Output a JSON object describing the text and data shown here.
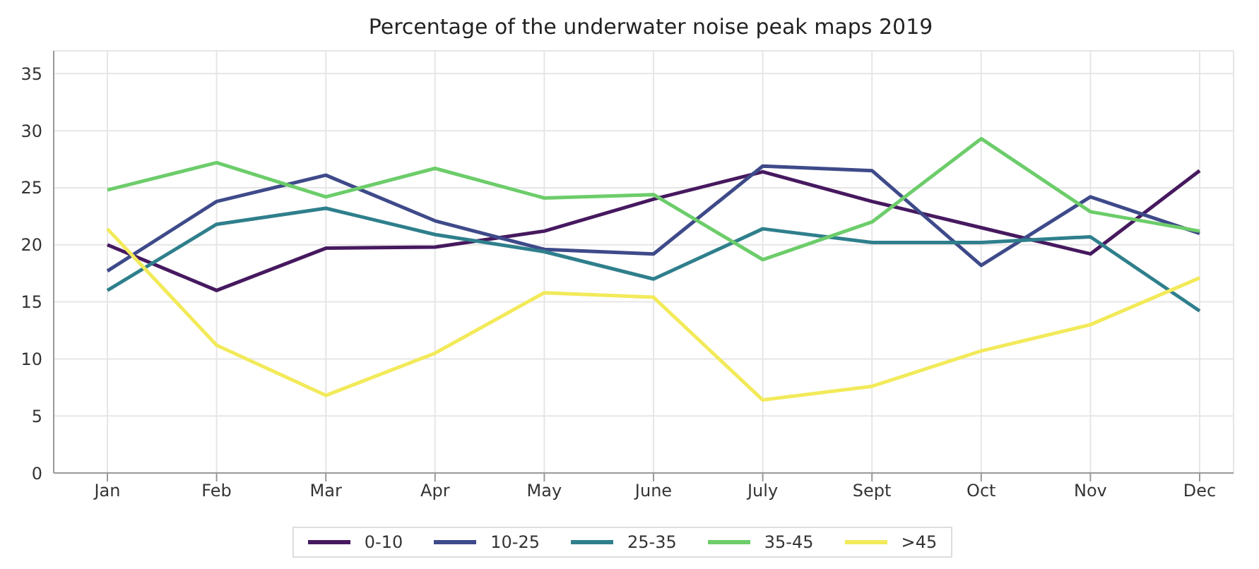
{
  "chart_data": {
    "type": "line",
    "title": "Percentage of the underwater noise peak maps 2019",
    "categories": [
      "Jan",
      "Feb",
      "Mar",
      "Apr",
      "May",
      "June",
      "July",
      "Sept",
      "Oct",
      "Nov",
      "Dec"
    ],
    "series": [
      {
        "name": "0-10",
        "color": "#46195f",
        "values": [
          20,
          16,
          19.7,
          19.8,
          21.2,
          24,
          26.4,
          23.8,
          21.5,
          19.2,
          26.5
        ]
      },
      {
        "name": "10-25",
        "color": "#3e4a89",
        "values": [
          17.7,
          23.8,
          26.1,
          22.1,
          19.6,
          19.2,
          26.9,
          26.5,
          18.2,
          24.2,
          21
        ]
      },
      {
        "name": "25-35",
        "color": "#2f7f8c",
        "values": [
          16,
          21.8,
          23.2,
          20.9,
          19.4,
          17,
          21.4,
          20.2,
          20.2,
          20.7,
          14.2
        ]
      },
      {
        "name": "35-45",
        "color": "#6ccd6a",
        "values": [
          24.8,
          27.2,
          24.2,
          26.7,
          24.1,
          24.4,
          18.7,
          22,
          29.3,
          22.9,
          21.2
        ]
      },
      {
        "name": ">45",
        "color": "#f2ea5a",
        "values": [
          21.4,
          11.2,
          6.8,
          10.5,
          15.8,
          15.4,
          6.4,
          7.6,
          10.7,
          13,
          17.1
        ]
      }
    ],
    "ylim": [
      0,
      37
    ],
    "yticks": [
      0,
      5,
      10,
      15,
      20,
      25,
      30,
      35
    ],
    "grid": true,
    "legend": "bottom",
    "marker": "none",
    "line_style": "solid"
  }
}
